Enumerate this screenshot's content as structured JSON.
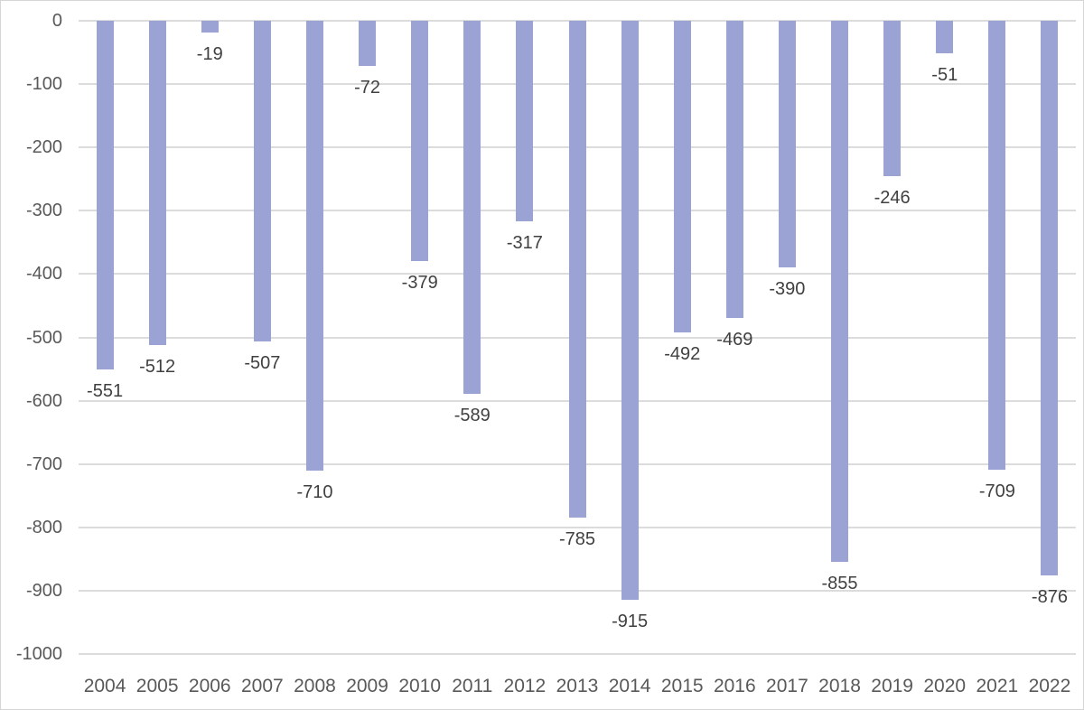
{
  "chart_data": {
    "type": "bar",
    "title": "",
    "xlabel": "",
    "ylabel": "",
    "categories": [
      "2004",
      "2005",
      "2006",
      "2007",
      "2008",
      "2009",
      "2010",
      "2011",
      "2012",
      "2013",
      "2014",
      "2015",
      "2016",
      "2017",
      "2018",
      "2019",
      "2020",
      "2021",
      "2022"
    ],
    "values": [
      -551,
      -512,
      -19,
      -507,
      -710,
      -72,
      -379,
      -589,
      -317,
      -785,
      -915,
      -492,
      -469,
      -390,
      -855,
      -246,
      -51,
      -709,
      -876
    ],
    "data_labels": [
      "-551",
      "-512",
      "-19",
      "-507",
      "-710",
      "-72",
      "-379",
      "-589",
      "-317",
      "-785",
      "-915",
      "-492",
      "-469",
      "-390",
      "-855",
      "-246",
      "-51",
      "-709",
      "-876"
    ],
    "y_ticks": [
      0,
      -100,
      -200,
      -300,
      -400,
      -500,
      -600,
      -700,
      -800,
      -900,
      -1000
    ],
    "y_tick_labels": [
      "0",
      "-100",
      "-200",
      "-300",
      "-400",
      "-500",
      "-600",
      "-700",
      "-800",
      "-900",
      "-1000"
    ],
    "ylim": [
      -1000,
      0
    ],
    "grid": true,
    "legend_position": "none",
    "data_label_position": "outside-end",
    "colors": {
      "bar_fill": "#9AA3D3",
      "gridline": "#DCDCDC",
      "axis_tick_label": "#595959",
      "data_label": "#404040",
      "background": "#FFFFFF",
      "chart_border": "#D6D6D6"
    }
  }
}
